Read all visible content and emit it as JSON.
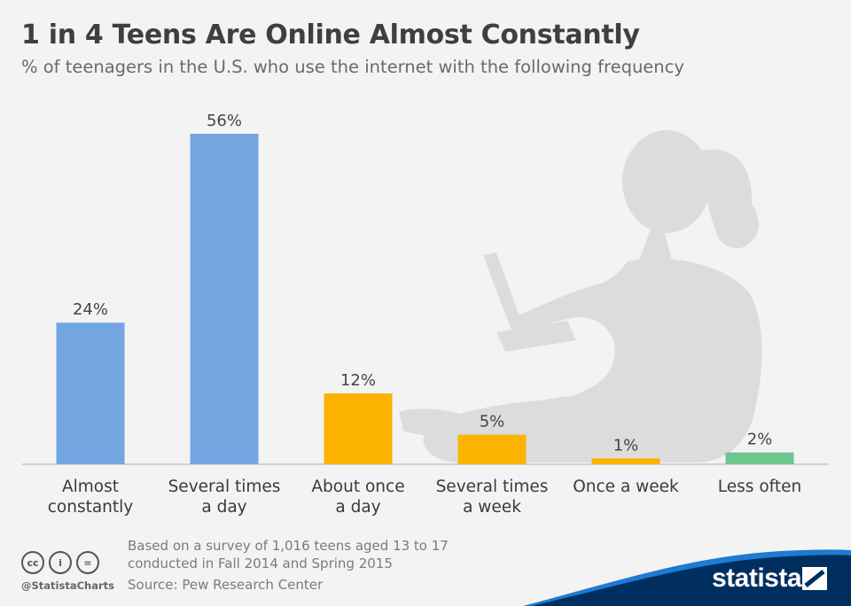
{
  "header": {
    "title": "1 in 4 Teens Are Online Almost Constantly",
    "subtitle": "% of teenagers in the U.S. who use the internet with the following frequency"
  },
  "chart_data": {
    "type": "bar",
    "title": "1 in 4 Teens Are Online Almost Constantly",
    "subtitle": "% of teenagers in the U.S. who use the internet with the following frequency",
    "categories": [
      [
        "Almost",
        "constantly"
      ],
      [
        "Several times",
        "a day"
      ],
      [
        "About once",
        "a day"
      ],
      [
        "Several times",
        "a week"
      ],
      [
        "Once a week"
      ],
      [
        "Less often"
      ]
    ],
    "values": [
      24,
      56,
      12,
      5,
      1,
      2
    ],
    "value_labels": [
      "24%",
      "56%",
      "12%",
      "5%",
      "1%",
      "2%"
    ],
    "bar_colors": [
      "#74a6e2",
      "#74a6e2",
      "#fbb300",
      "#fbb300",
      "#fbb300",
      "#6cc78e"
    ],
    "ylim": [
      0,
      60
    ],
    "grid": false,
    "unit": "%"
  },
  "footer": {
    "note_line1": "Based on a survey of 1,016 teens aged 13 to 17",
    "note_line2": "conducted in Fall 2014 and Spring 2015",
    "source": "Source: Pew Research Center",
    "handle": "@StatistaCharts",
    "license_icons": [
      "cc-icon",
      "by-icon",
      "nd-icon"
    ],
    "license_icon_glyphs": [
      "cc",
      "i",
      "="
    ]
  },
  "brand": {
    "name": "statista",
    "color": "#002f5f",
    "accent": "#1c7bd2"
  },
  "colors": {
    "background": "#f3f3f3",
    "silhouette": "#dcdcdc",
    "axis": "#c8c8c8"
  }
}
